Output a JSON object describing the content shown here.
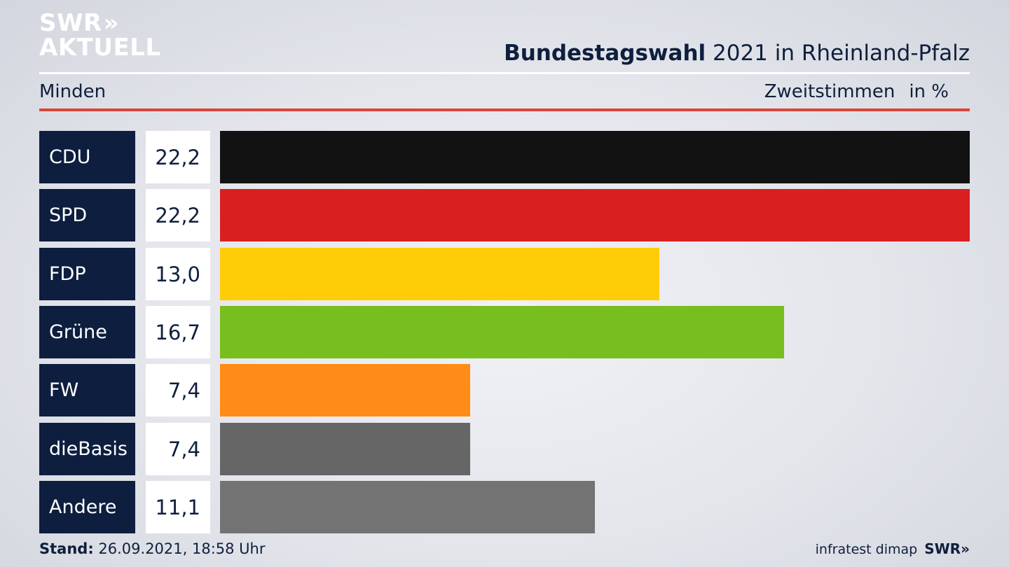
{
  "logo": {
    "line1": "SWR",
    "chevrons": "»",
    "line2": "AKTUELL"
  },
  "header": {
    "title_bold": "Bundestagswahl",
    "title_rest": " 2021 in Rheinland-Pfalz",
    "region": "Minden",
    "metric": "Zweitstimmen",
    "unit": "in %"
  },
  "chart_data": {
    "type": "bar",
    "orientation": "horizontal",
    "categories": [
      "CDU",
      "SPD",
      "FDP",
      "Grüne",
      "FW",
      "dieBasis",
      "Andere"
    ],
    "values": [
      22.2,
      22.2,
      13.0,
      16.7,
      7.4,
      7.4,
      11.1
    ],
    "value_labels": [
      "22,2",
      "22,2",
      "13,0",
      "16,7",
      "7,4",
      "7,4",
      "11,1"
    ],
    "colors": [
      "#121212",
      "#d91f1f",
      "#ffcc08",
      "#78be1e",
      "#ff8c16",
      "#666666",
      "#737373"
    ],
    "xlim": [
      0,
      22.2
    ]
  },
  "footer": {
    "stand_label": "Stand:",
    "stand_value": " 26.09.2021, 18:58 Uhr",
    "source": "infratest dimap",
    "brand": "SWR»"
  }
}
